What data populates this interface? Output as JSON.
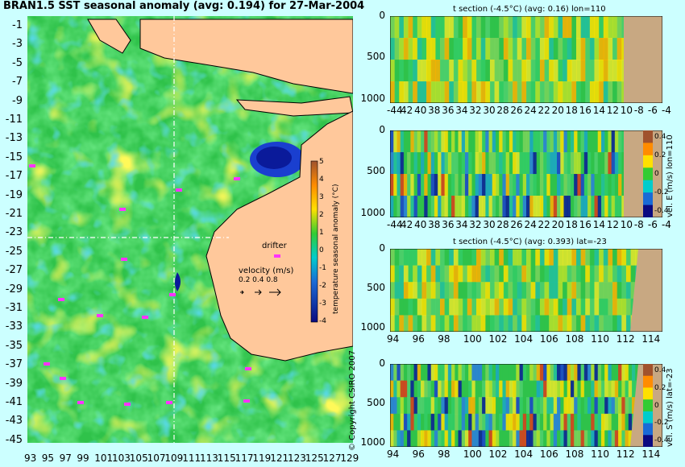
{
  "title": "BRAN1.5 SST seasonal anomaly (avg: 0.194) for 27-Mar-2004",
  "copyright": "© Copyright CSIRO 2007",
  "map": {
    "lat_ticks": [
      "-1",
      "-3",
      "-5",
      "-7",
      "-9",
      "-11",
      "-13",
      "-15",
      "-17",
      "-19",
      "-21",
      "-23",
      "-25",
      "-27",
      "-29",
      "-31",
      "-33",
      "-35",
      "-37",
      "-39",
      "-41",
      "-43",
      "-45"
    ],
    "lon_ticks": [
      "93",
      "95",
      "97",
      "99",
      "101",
      "103",
      "105",
      "107",
      "109",
      "111",
      "113",
      "115",
      "117",
      "119",
      "121",
      "123",
      "125",
      "127",
      "129"
    ],
    "colorbar_label": "temperature seasonal anomaly (°C)",
    "colorbar_ticks": [
      "5",
      "4",
      "3",
      "2",
      "1",
      "0",
      "-1",
      "-2",
      "-3",
      "-4"
    ],
    "drifter_label": "drifter",
    "velocity_label": "velocity (m/s)",
    "velocity_scale": "0.2 0.4 0.8",
    "colors": {
      "land": "#ffc89b",
      "ocean_base": "#2fc24a",
      "anomaly_cold": "#0a1a9a",
      "anomaly_warm": "#ffd21a",
      "drifter": "#ff33ff"
    }
  },
  "panels": [
    {
      "title": "t section (-4.5°C) (avg: 0.16) lon=110",
      "x_ticks": [
        "-44",
        "42",
        "40",
        "38",
        "36",
        "34",
        "32",
        "30",
        "28",
        "26",
        "24",
        "22",
        "20",
        "18",
        "16",
        "14",
        "12",
        "10",
        "-8",
        "-6",
        "-4"
      ],
      "y_ticks": [
        "0",
        "500",
        "1000"
      ],
      "side_label": ""
    },
    {
      "title": "",
      "x_ticks": [
        "-44",
        "42",
        "40",
        "38",
        "36",
        "34",
        "32",
        "30",
        "28",
        "26",
        "24",
        "22",
        "20",
        "18",
        "16",
        "14",
        "12",
        "10",
        "-8",
        "-6",
        "-4"
      ],
      "y_ticks": [
        "0",
        "500",
        "1000"
      ],
      "side_label": "vel. E (m/s) lon=110",
      "colorbar_ticks": [
        "0.4",
        "0.2",
        "0",
        "-0.2",
        "-0.4"
      ]
    },
    {
      "title": "t section (-4.5°C) (avg: 0.393) lat=-23",
      "x_ticks": [
        "94",
        "96",
        "98",
        "100",
        "102",
        "104",
        "106",
        "108",
        "110",
        "112",
        "114"
      ],
      "y_ticks": [
        "0",
        "500",
        "1000"
      ],
      "side_label": ""
    },
    {
      "title": "",
      "x_ticks": [
        "94",
        "96",
        "98",
        "100",
        "102",
        "104",
        "106",
        "108",
        "110",
        "112",
        "114"
      ],
      "y_ticks": [
        "0",
        "500",
        "1000"
      ],
      "side_label": "vel. S (m/s) lat=-23",
      "colorbar_ticks": [
        "0.4",
        "0.2",
        "0",
        "-0.2",
        "-0.4"
      ]
    }
  ],
  "chart_data": [
    {
      "type": "heatmap",
      "title": "BRAN1.5 SST seasonal anomaly (avg: 0.194) for 27-Mar-2004",
      "xlabel": "",
      "ylabel": "",
      "xlim": [
        93,
        130
      ],
      "ylim": [
        -45,
        0
      ],
      "colorbar": {
        "label": "temperature seasonal anomaly (°C)",
        "range": [
          -4,
          5
        ]
      }
    },
    {
      "type": "heatmap",
      "title": "t section (-4.5°C) (avg: 0.16) lon=110",
      "xlim": [
        -45,
        -3
      ],
      "ylim": [
        1050,
        0
      ]
    },
    {
      "type": "heatmap",
      "title": "",
      "xlim": [
        -45,
        -3
      ],
      "ylim": [
        1050,
        0
      ],
      "colorbar": {
        "label": "vel. E (m/s) lon=110",
        "range": [
          -0.4,
          0.4
        ]
      }
    },
    {
      "type": "heatmap",
      "title": "t section (-4.5°C) (avg: 0.393) lat=-23",
      "xlim": [
        93,
        115
      ],
      "ylim": [
        1050,
        0
      ]
    },
    {
      "type": "heatmap",
      "title": "",
      "xlim": [
        93,
        115
      ],
      "ylim": [
        1050,
        0
      ],
      "colorbar": {
        "label": "vel. S (m/s) lat=-23",
        "range": [
          -0.4,
          0.4
        ]
      }
    }
  ]
}
